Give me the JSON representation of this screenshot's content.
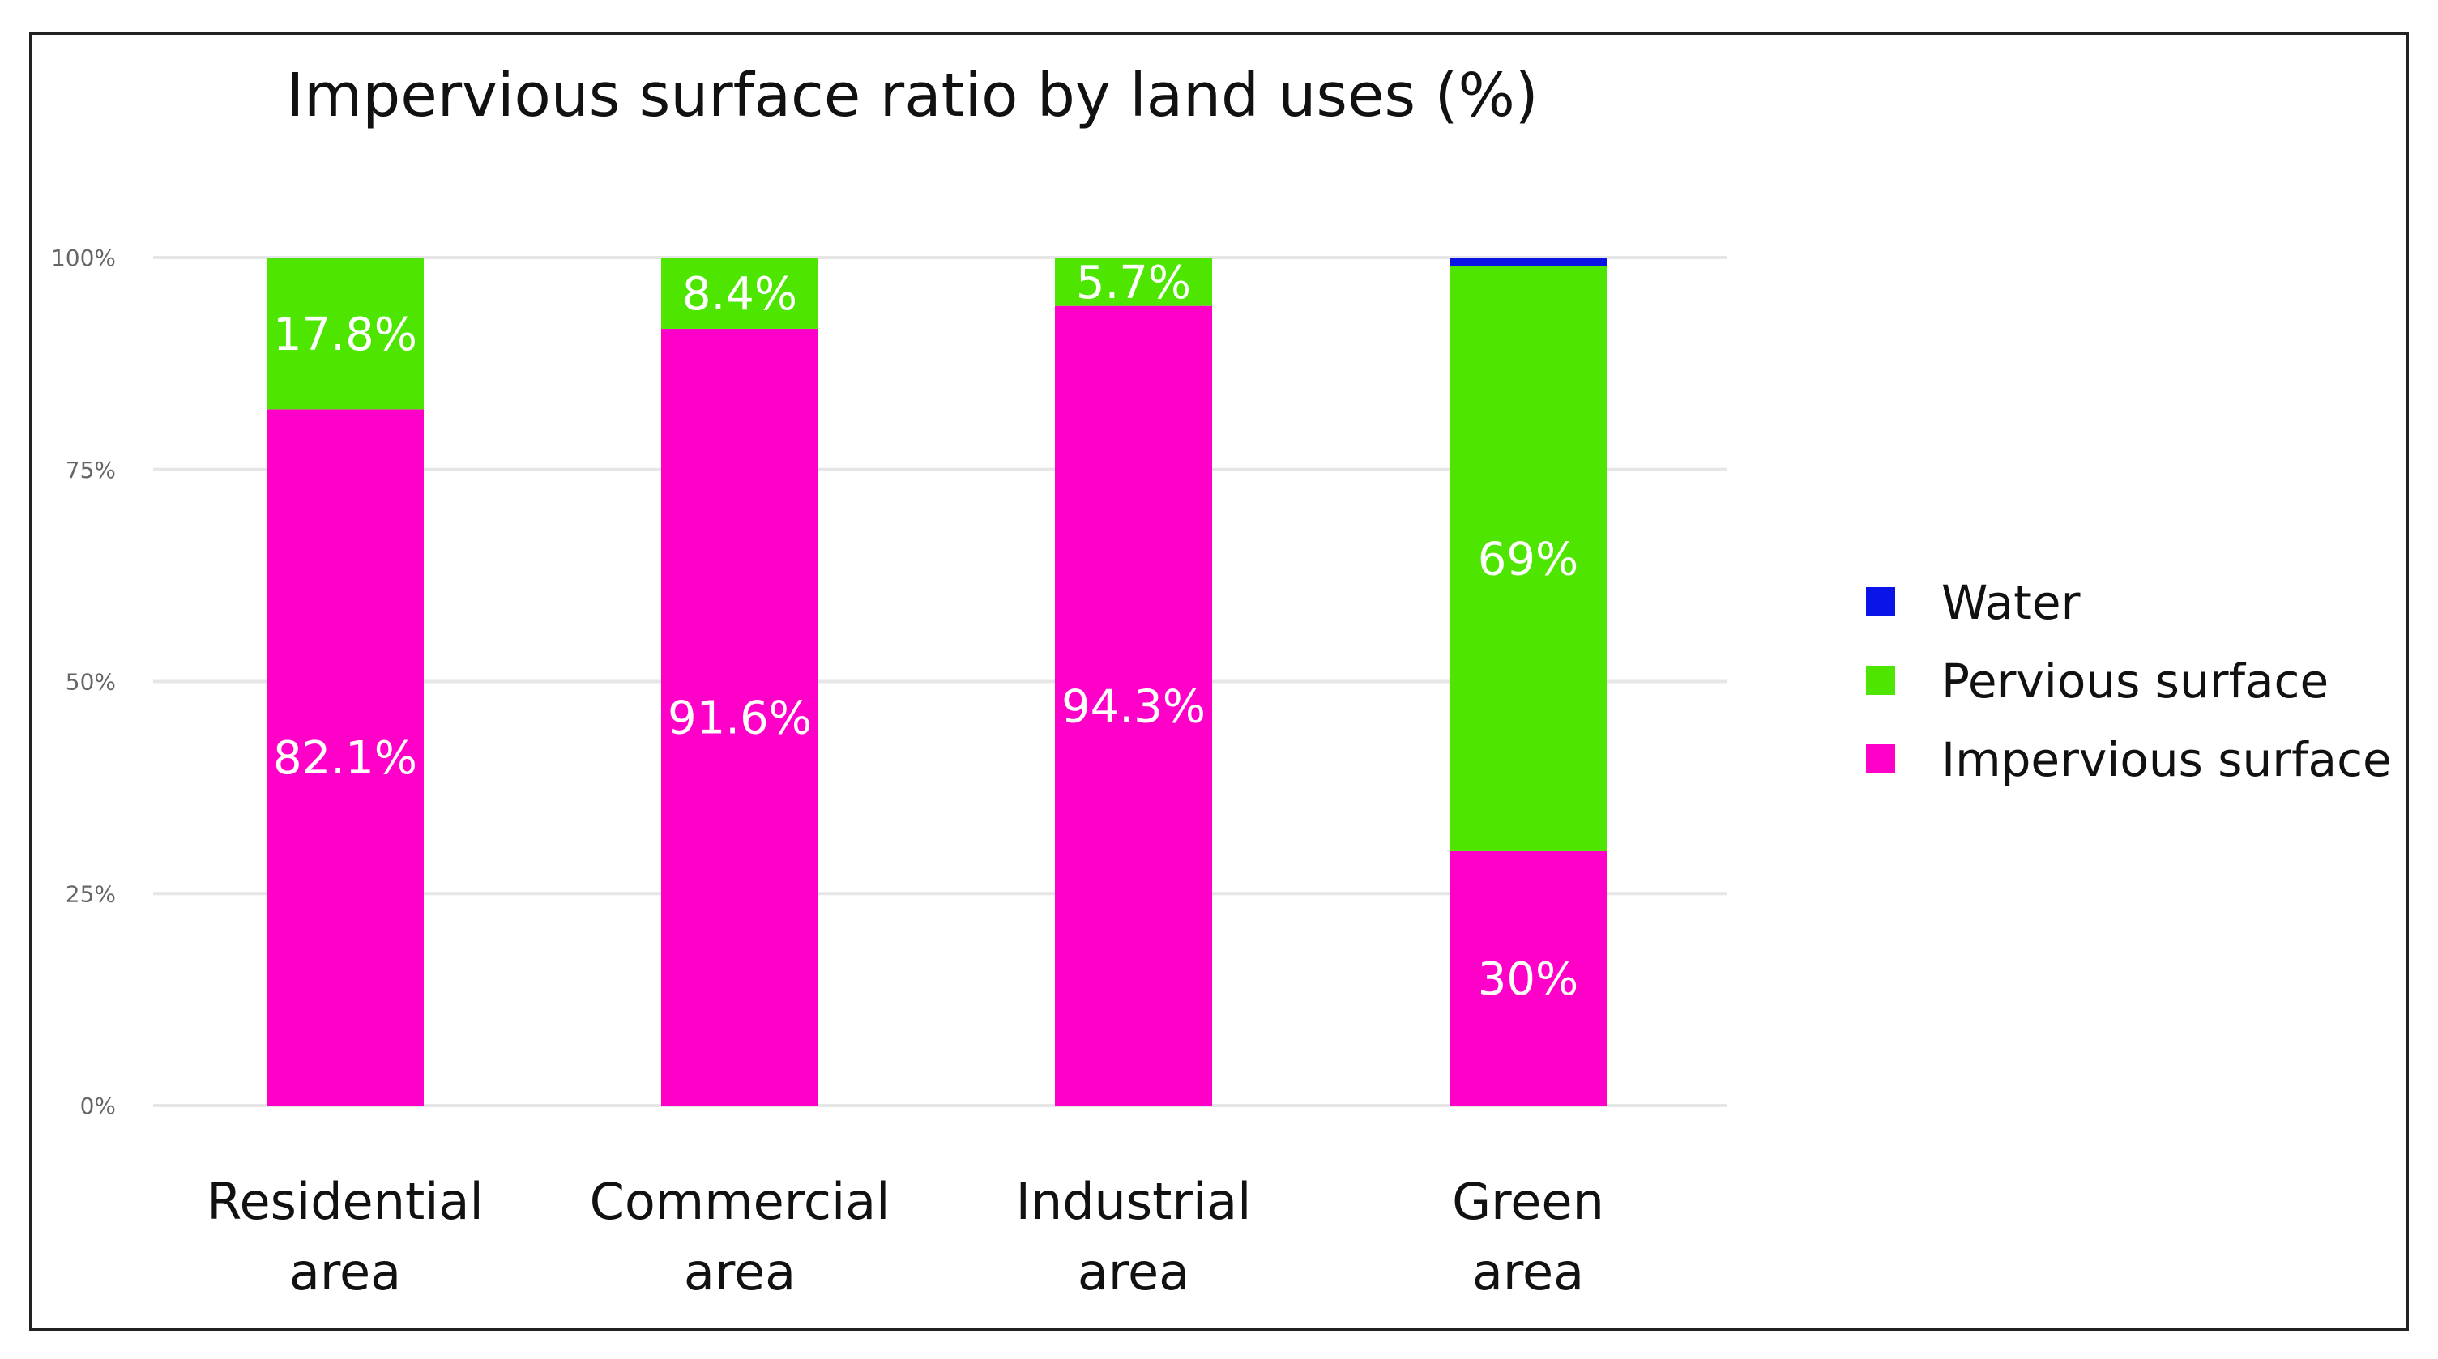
{
  "chart_data": {
    "type": "bar",
    "stacked": true,
    "title": "Impervious surface ratio by land uses (%)",
    "xlabel": "",
    "ylabel": "",
    "ylim": [
      0,
      100
    ],
    "y_ticks": [
      "0%",
      "25%",
      "50%",
      "75%",
      "100%"
    ],
    "categories": [
      [
        "Residential",
        "area"
      ],
      [
        "Commercial",
        "area"
      ],
      [
        "Industrial",
        "area"
      ],
      [
        "Green",
        "area"
      ]
    ],
    "series": [
      {
        "name": "Impervious surface",
        "color": "#ff00c8",
        "values": [
          82.1,
          91.6,
          94.3,
          30
        ],
        "labels": [
          "82.1%",
          "91.6%",
          "94.3%",
          "30%"
        ]
      },
      {
        "name": "Pervious surface",
        "color": "#4ee600",
        "values": [
          17.8,
          8.4,
          5.7,
          69
        ],
        "labels": [
          "17.8%",
          "8.4%",
          "5.7%",
          "69%"
        ]
      },
      {
        "name": "Water",
        "color": "#0a14e6",
        "values": [
          0.1,
          0,
          0,
          1
        ],
        "labels": [
          "",
          "",
          "",
          ""
        ]
      }
    ],
    "legend": {
      "position": "right",
      "order": [
        "Water",
        "Pervious surface",
        "Impervious surface"
      ]
    },
    "grid": true
  }
}
